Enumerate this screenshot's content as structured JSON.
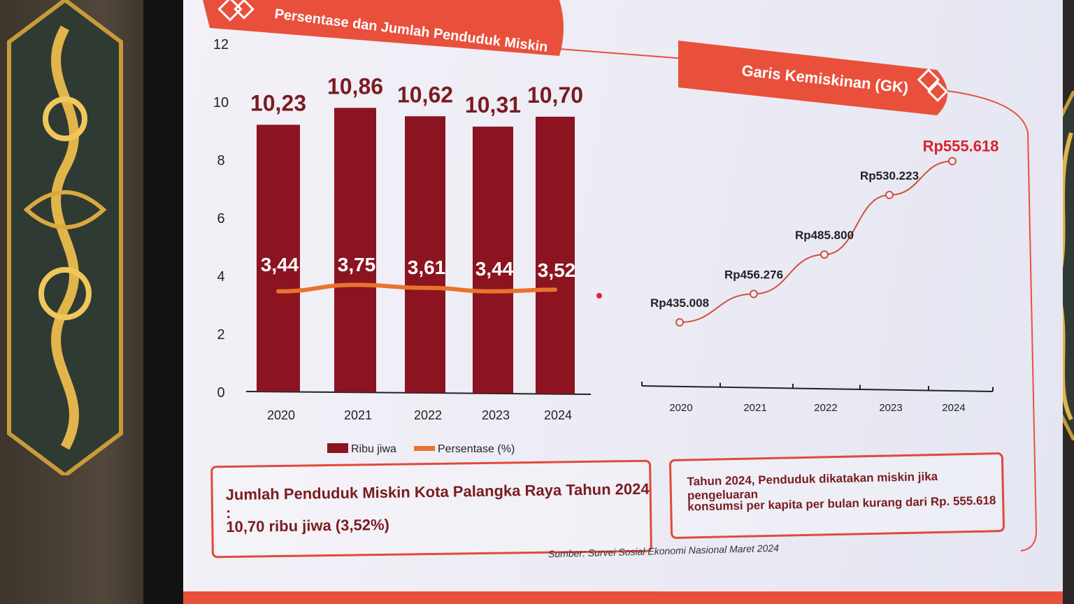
{
  "left_panel": {
    "title": "Persentase dan Jumlah Penduduk Miskin",
    "legend": {
      "bar": "Ribu jiwa",
      "line": "Persentase (%)"
    }
  },
  "right_panel": {
    "title": "Garis Kemiskinan (GK)"
  },
  "chart_data": [
    {
      "type": "bar",
      "title": "Persentase dan Jumlah Penduduk Miskin",
      "categories": [
        "2020",
        "2021",
        "2022",
        "2023",
        "2024"
      ],
      "ylim": [
        0,
        12
      ],
      "yticks": [
        "0",
        "2",
        "4",
        "6",
        "8",
        "10",
        "12"
      ],
      "series": [
        {
          "name": "Ribu jiwa",
          "type": "bar",
          "values": [
            10.23,
            10.86,
            10.62,
            10.31,
            10.7
          ],
          "labels": [
            "10,23",
            "10,86",
            "10,62",
            "10,31",
            "10,70"
          ],
          "color": "#8b1420"
        },
        {
          "name": "Persentase (%)",
          "type": "line",
          "values": [
            3.44,
            3.75,
            3.61,
            3.44,
            3.52
          ],
          "labels": [
            "3,44",
            "3,75",
            "3,61",
            "3,44",
            "3,52"
          ],
          "color": "#e8732e"
        }
      ],
      "grid": false,
      "legend": "bottom"
    },
    {
      "type": "line",
      "title": "Garis Kemiskinan (GK)",
      "categories": [
        "2020",
        "2021",
        "2022",
        "2023",
        "2024"
      ],
      "values": [
        435008,
        456276,
        485800,
        530223,
        555618
      ],
      "labels": [
        "Rp435.008",
        "Rp456.276",
        "Rp485.800",
        "Rp530.223",
        "Rp555.618"
      ],
      "color": "#d0503c",
      "highlight_color": "#d9232e",
      "grid": false
    }
  ],
  "info_left": {
    "line1": "Jumlah Penduduk Miskin Kota Palangka Raya Tahun 2024 :",
    "line2": "10,70 ribu jiwa (3,52%)"
  },
  "info_right": {
    "line1": "Tahun 2024, Penduduk dikatakan miskin jika pengeluaran",
    "line2": "konsumsi per kapita per bulan kurang dari Rp. 555.618"
  },
  "source": "Sumber: Survei Sosial Ekonomi Nasional Maret 2024",
  "colors": {
    "accent": "#e04a3a",
    "bar": "#8b1420",
    "line": "#e8732e",
    "text": "#7a1c20"
  }
}
